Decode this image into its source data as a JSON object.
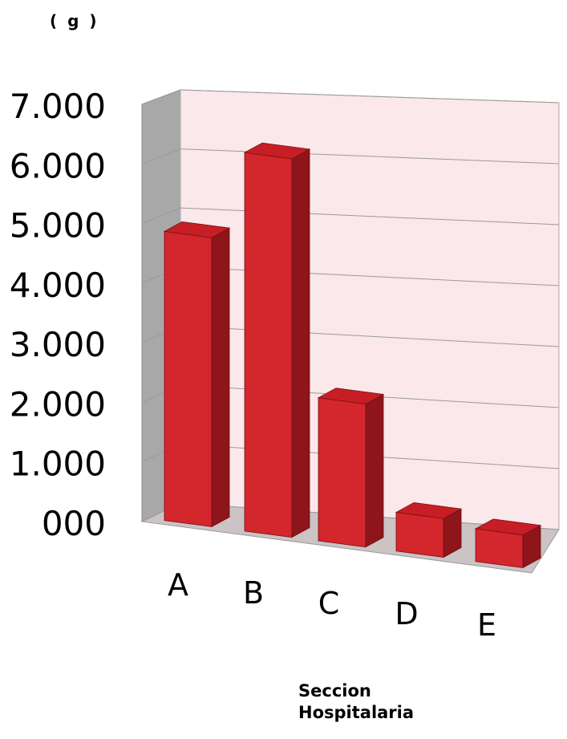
{
  "chart_data": {
    "type": "bar",
    "title": "",
    "unit_label": "( g )",
    "xlabel": [
      "Seccion",
      "Hospitalaria"
    ],
    "ylabel": "",
    "categories": [
      "A",
      "B",
      "C",
      "D",
      "E"
    ],
    "values": [
      4850,
      6350,
      2400,
      650,
      550
    ],
    "yticks": [
      "000",
      "1.000",
      "2.000",
      "3.000",
      "4.000",
      "5.000",
      "6.000",
      "7.000"
    ],
    "ylim": [
      0,
      7000
    ],
    "grid": true,
    "legend": "none",
    "style": "3d-column",
    "colors": {
      "bar_front": "#d4262d",
      "bar_side": "#8e1519",
      "bar_top": "#c71e25",
      "back_wall": "#fbe8ea",
      "side_wall": "#a8a8a8",
      "floor": "#cbc3c4",
      "gridline": "#9a9a9a"
    }
  }
}
